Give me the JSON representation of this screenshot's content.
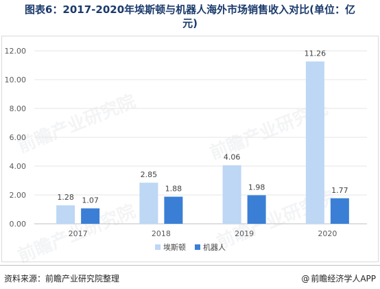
{
  "title": {
    "line1": "图表6：2017-2020年埃斯顿与机器人海外市场销售收入对比(单位：亿",
    "line2": "元)"
  },
  "watermark_text": "前瞻产业研究院",
  "footer": {
    "source": "资料来源：前瞻产业研究院整理",
    "credit_symbol": "@",
    "credit": "前瞻经济学人APP"
  },
  "colors": {
    "series_1": "#bdd7f5",
    "series_2": "#3a7fd5",
    "grid": "#e6e6e6",
    "axis_text": "#595959"
  },
  "chart_data": {
    "type": "bar",
    "categories": [
      "2017",
      "2018",
      "2019",
      "2020"
    ],
    "series": [
      {
        "name": "埃斯顿",
        "values": [
          1.28,
          2.85,
          4.06,
          11.26
        ],
        "labels": [
          "1.28",
          "2.85",
          "4.06",
          "11.26"
        ]
      },
      {
        "name": "机器人",
        "values": [
          1.07,
          1.88,
          1.98,
          1.77
        ],
        "labels": [
          "1.07",
          "1.88",
          "1.98",
          "1.77"
        ]
      }
    ],
    "yticks": [
      "0.00",
      "2.00",
      "4.00",
      "6.00",
      "8.00",
      "10.00",
      "12.00"
    ],
    "ylim": [
      0,
      12
    ],
    "grid": true,
    "legend_position": "bottom"
  }
}
